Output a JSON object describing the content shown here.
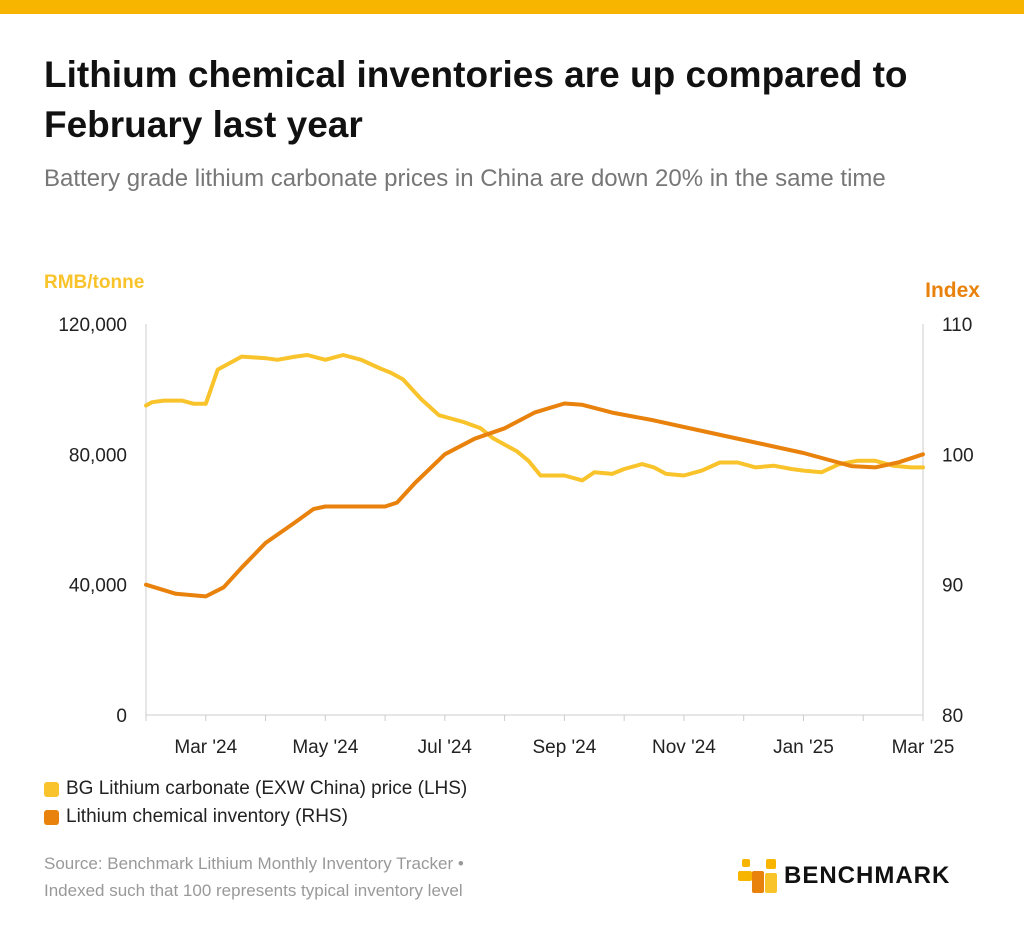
{
  "header": {
    "title": "Lithium chemical inventories are up compared to February last year",
    "subtitle": "Battery grade lithium carbonate prices in China are down 20% in the same time"
  },
  "colors": {
    "accent_bar": "#f7b500",
    "price_line": "#f9c32b",
    "inventory_line": "#e8820c",
    "axis": "#cccccc",
    "text_muted": "#999999"
  },
  "chart_data": {
    "type": "line",
    "left_axis": {
      "label": "RMB/tonne",
      "range": [
        0,
        120000
      ],
      "ticks": [
        "120,000",
        "80,000",
        "40,000",
        "0"
      ],
      "tick_values": [
        120000,
        80000,
        40000,
        0
      ]
    },
    "right_axis": {
      "label": "Index",
      "range": [
        80,
        110
      ],
      "ticks": [
        "110",
        "100",
        "90",
        "80"
      ],
      "tick_values": [
        110,
        100,
        90,
        80
      ]
    },
    "x_ticks": [
      "Mar '24",
      "May '24",
      "Jul '24",
      "Sep '24",
      "Nov '24",
      "Jan '25",
      "Mar '25"
    ],
    "x_tick_values": [
      1,
      3,
      5,
      7,
      9,
      11,
      13
    ],
    "x_range": [
      0,
      13
    ],
    "series": [
      {
        "name": "BG Lithium carbonate (EXW China) price (LHS)",
        "axis": "left",
        "points": [
          [
            0,
            95000
          ],
          [
            0.1,
            96000
          ],
          [
            0.3,
            96500
          ],
          [
            0.6,
            96500
          ],
          [
            0.8,
            95500
          ],
          [
            1.0,
            95500
          ],
          [
            1.2,
            106000
          ],
          [
            1.6,
            110000
          ],
          [
            2.0,
            109500
          ],
          [
            2.2,
            109000
          ],
          [
            2.5,
            110000
          ],
          [
            2.7,
            110500
          ],
          [
            3.0,
            109000
          ],
          [
            3.3,
            110500
          ],
          [
            3.6,
            109000
          ],
          [
            3.9,
            106500
          ],
          [
            4.1,
            105000
          ],
          [
            4.3,
            103000
          ],
          [
            4.6,
            97000
          ],
          [
            4.9,
            92000
          ],
          [
            5.1,
            91000
          ],
          [
            5.3,
            90000
          ],
          [
            5.6,
            88000
          ],
          [
            5.8,
            85000
          ],
          [
            6.0,
            83000
          ],
          [
            6.2,
            81000
          ],
          [
            6.4,
            78000
          ],
          [
            6.6,
            73500
          ],
          [
            6.8,
            73500
          ],
          [
            7.0,
            73500
          ],
          [
            7.3,
            72000
          ],
          [
            7.5,
            74500
          ],
          [
            7.8,
            74000
          ],
          [
            8.0,
            75500
          ],
          [
            8.3,
            77000
          ],
          [
            8.5,
            76000
          ],
          [
            8.7,
            74000
          ],
          [
            9.0,
            73500
          ],
          [
            9.3,
            75000
          ],
          [
            9.6,
            77500
          ],
          [
            9.9,
            77500
          ],
          [
            10.2,
            76000
          ],
          [
            10.5,
            76500
          ],
          [
            10.8,
            75500
          ],
          [
            11.0,
            75000
          ],
          [
            11.3,
            74500
          ],
          [
            11.6,
            77000
          ],
          [
            11.9,
            78000
          ],
          [
            12.2,
            78000
          ],
          [
            12.5,
            76500
          ],
          [
            12.8,
            76000
          ],
          [
            13.0,
            76000
          ]
        ]
      },
      {
        "name": "Lithium chemical inventory (RHS)",
        "axis": "right",
        "points": [
          [
            0,
            90
          ],
          [
            0.5,
            89.3
          ],
          [
            1.0,
            89.1
          ],
          [
            1.3,
            89.8
          ],
          [
            1.6,
            91.3
          ],
          [
            2.0,
            93.2
          ],
          [
            2.5,
            94.8
          ],
          [
            2.8,
            95.8
          ],
          [
            3.0,
            96
          ],
          [
            3.5,
            96
          ],
          [
            4.0,
            96
          ],
          [
            4.2,
            96.3
          ],
          [
            4.5,
            97.8
          ],
          [
            5.0,
            100
          ],
          [
            5.5,
            101.2
          ],
          [
            6.0,
            102
          ],
          [
            6.5,
            103.2
          ],
          [
            7.0,
            103.9
          ],
          [
            7.3,
            103.8
          ],
          [
            7.8,
            103.2
          ],
          [
            8.5,
            102.6
          ],
          [
            9.0,
            102.1
          ],
          [
            9.5,
            101.6
          ],
          [
            10.0,
            101.1
          ],
          [
            10.5,
            100.6
          ],
          [
            11.0,
            100.1
          ],
          [
            11.4,
            99.6
          ],
          [
            11.8,
            99.1
          ],
          [
            12.2,
            99
          ],
          [
            12.6,
            99.4
          ],
          [
            13.0,
            100
          ]
        ]
      }
    ],
    "grid": false,
    "legend_position": "bottom-left"
  },
  "legend": {
    "items": [
      {
        "label": "BG Lithium carbonate (EXW China) price (LHS)",
        "color": "#f9c32b"
      },
      {
        "label": "Lithium chemical inventory (RHS)",
        "color": "#e8820c"
      }
    ]
  },
  "footer": {
    "source_line1": "Source: Benchmark Lithium Monthly Inventory Tracker •",
    "source_line2": "Indexed such that 100 represents typical inventory level",
    "logo_text": "BENCHMARK"
  }
}
